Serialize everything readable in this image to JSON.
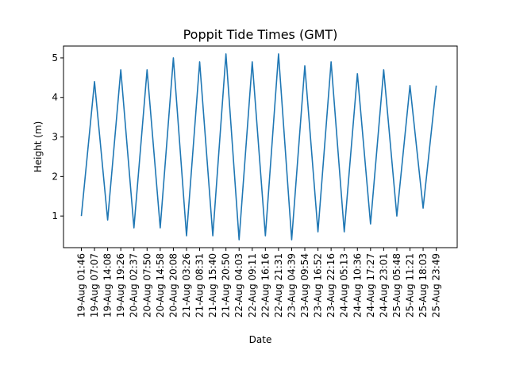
{
  "chart_data": {
    "type": "line",
    "title": "Poppit Tide Times (GMT)",
    "xlabel": "Date",
    "ylabel": "Height (m)",
    "y_ticks": [
      1,
      2,
      3,
      4,
      5
    ],
    "ylim": [
      0.2,
      5.3
    ],
    "grid": false,
    "line_color": "#1f77b4",
    "x": [
      "19-Aug 01:46",
      "19-Aug 07:07",
      "19-Aug 14:08",
      "19-Aug 19:26",
      "20-Aug 02:37",
      "20-Aug 07:50",
      "20-Aug 14:58",
      "20-Aug 20:08",
      "21-Aug 03:26",
      "21-Aug 08:31",
      "21-Aug 15:40",
      "21-Aug 20:50",
      "22-Aug 04:03",
      "22-Aug 09:11",
      "22-Aug 16:16",
      "22-Aug 21:31",
      "23-Aug 04:39",
      "23-Aug 09:54",
      "23-Aug 16:52",
      "23-Aug 22:16",
      "24-Aug 05:13",
      "24-Aug 10:36",
      "24-Aug 17:27",
      "24-Aug 23:01",
      "25-Aug 05:48",
      "25-Aug 11:21",
      "25-Aug 18:03",
      "25-Aug 23:49"
    ],
    "series": [
      {
        "values": [
          1.0,
          4.4,
          0.9,
          4.7,
          0.7,
          4.7,
          0.7,
          5.0,
          0.5,
          4.9,
          0.5,
          5.1,
          0.4,
          4.9,
          0.5,
          5.1,
          0.4,
          4.8,
          0.6,
          4.9,
          0.6,
          4.6,
          0.8,
          4.7,
          1.0,
          4.3,
          1.2,
          4.3
        ]
      }
    ]
  }
}
